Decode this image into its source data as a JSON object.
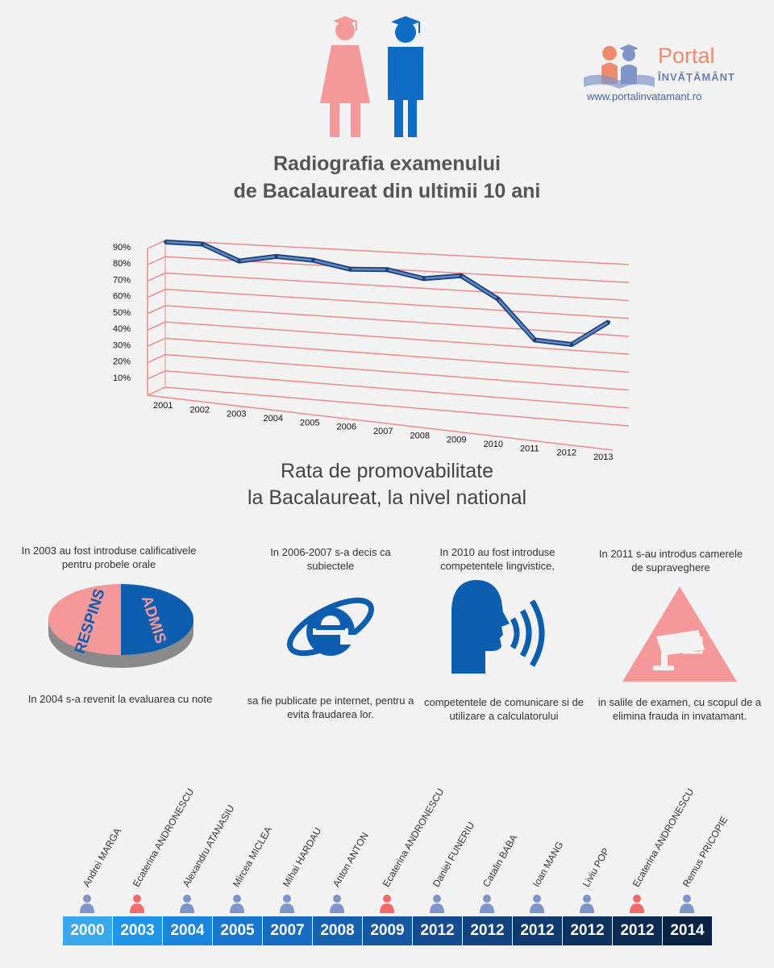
{
  "logo": {
    "word": "Portal",
    "sub": "ÎNVĂȚĂMÂNT",
    "url": "www.portalinvatamant.ro"
  },
  "title": {
    "line1": "Radiografia examenului",
    "line2": "de Bacalaureat din ultimii 10 ani"
  },
  "subtitle": {
    "line1": "Rata de promovabilitate",
    "line2": "la Bacalaureat, la nivel national"
  },
  "chart_data": {
    "type": "line",
    "title": "Rata de promovabilitate la Bacalaureat, la nivel national",
    "y_ticks": [
      "10%",
      "20%",
      "30%",
      "40%",
      "50%",
      "60%",
      "70%",
      "80%",
      "90%"
    ],
    "ylim": [
      0,
      90
    ],
    "categories": [
      "2001",
      "2002",
      "2003",
      "2004",
      "2005",
      "2006",
      "2007",
      "2008",
      "2009",
      "2010",
      "2011",
      "2012",
      "2013"
    ],
    "values": [
      89,
      89,
      80,
      84,
      83,
      79,
      80,
      76,
      79,
      67,
      45,
      44,
      58
    ]
  },
  "events": {
    "e2003_top": "In 2003 au fost introduse calificativele pentru probele orale",
    "e2004_bottom": "In 2004 s-a revenit la evaluarea cu note",
    "pie_respins": "RESPINS",
    "pie_admis": "ADMIS",
    "e2006_top": "In 2006-2007 s-a decis ca subiectele",
    "e2006_bottom": "sa fie publicate pe internet, pentru a evita fraudarea lor.",
    "e2010_top": "In 2010 au fost introduse competentele lingvistice,",
    "e2010_bottom": "competentele de comunicare si de utilizare a calculatorului",
    "e2011_top": "In 2011 s-au introdus camerele de supraveghere",
    "e2011_bottom": "in salile de examen, cu scopul de a elimina frauda in invatamant."
  },
  "timeline": [
    {
      "year": "2000",
      "name": "Andrei MARGA",
      "color": "#39a9ec",
      "gender": "m"
    },
    {
      "year": "2003",
      "name": "Ecaterina ANDRONESCU",
      "color": "#1e95e6",
      "gender": "f"
    },
    {
      "year": "2004",
      "name": "Alexandru ATANASIU",
      "color": "#1a85dd",
      "gender": "m"
    },
    {
      "year": "2005",
      "name": "Mircea MICLEA",
      "color": "#1777cf",
      "gender": "m"
    },
    {
      "year": "2007",
      "name": "Mihai HARDAU",
      "color": "#166cc0",
      "gender": "m"
    },
    {
      "year": "2008",
      "name": "Anton ANTON",
      "color": "#1662b0",
      "gender": "m"
    },
    {
      "year": "2009",
      "name": "Ecaterina ANDRONESCU",
      "color": "#1557a0",
      "gender": "f"
    },
    {
      "year": "2012",
      "name": "Daniel FUNERIU",
      "color": "#144c8f",
      "gender": "m"
    },
    {
      "year": "2012",
      "name": "Catalin BABA",
      "color": "#12437f",
      "gender": "m"
    },
    {
      "year": "2012",
      "name": "Ioan MANG",
      "color": "#103a6f",
      "gender": "m"
    },
    {
      "year": "2012",
      "name": "Liviu POP",
      "color": "#0e3260",
      "gender": "m"
    },
    {
      "year": "2012",
      "name": "Ecaterina ANDRONESCU",
      "color": "#0c2a52",
      "gender": "f"
    },
    {
      "year": "2014",
      "name": "Remus PRICOPIE",
      "color": "#0a2244",
      "gender": "m"
    }
  ],
  "colors": {
    "pink": "#f5989a",
    "blue": "#0e5eb0",
    "grid": "#f08a8a",
    "line": "#2e5a98"
  }
}
